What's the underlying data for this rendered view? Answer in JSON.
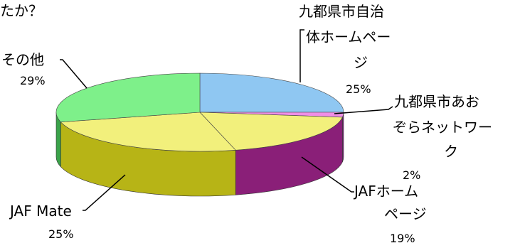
{
  "question_fragment": "たか？",
  "chart_data": {
    "type": "pie",
    "style": "3d",
    "categories": [
      "九都県市自治体ホームページ",
      "九都県市あおぞらネットワーク",
      "JAFホームページ",
      "JAF Mate",
      "その他"
    ],
    "values": [
      25,
      2,
      19,
      25,
      29
    ],
    "percent_labels": [
      "25%",
      "2%",
      "19%",
      "25%",
      "29%"
    ],
    "label_lines": [
      [
        "九都県市自治",
        "体ホームペー",
        "ジ"
      ],
      [
        "九都県市あお",
        "ぞらネットワー",
        "ク"
      ],
      [
        "JAFホーム",
        "ページ"
      ],
      [
        "JAF Mate"
      ],
      [
        "その他"
      ]
    ],
    "colors": [
      "#8fc7f2",
      "#f08ee6",
      "#f2f07c",
      "#f2f07c",
      "#7ef08a"
    ],
    "side_colors": [
      "#3d86c8",
      "#8a2a8a",
      "#8a1f78",
      "#b7b416",
      "#3aa24a"
    ],
    "legend": "none",
    "title": ""
  }
}
